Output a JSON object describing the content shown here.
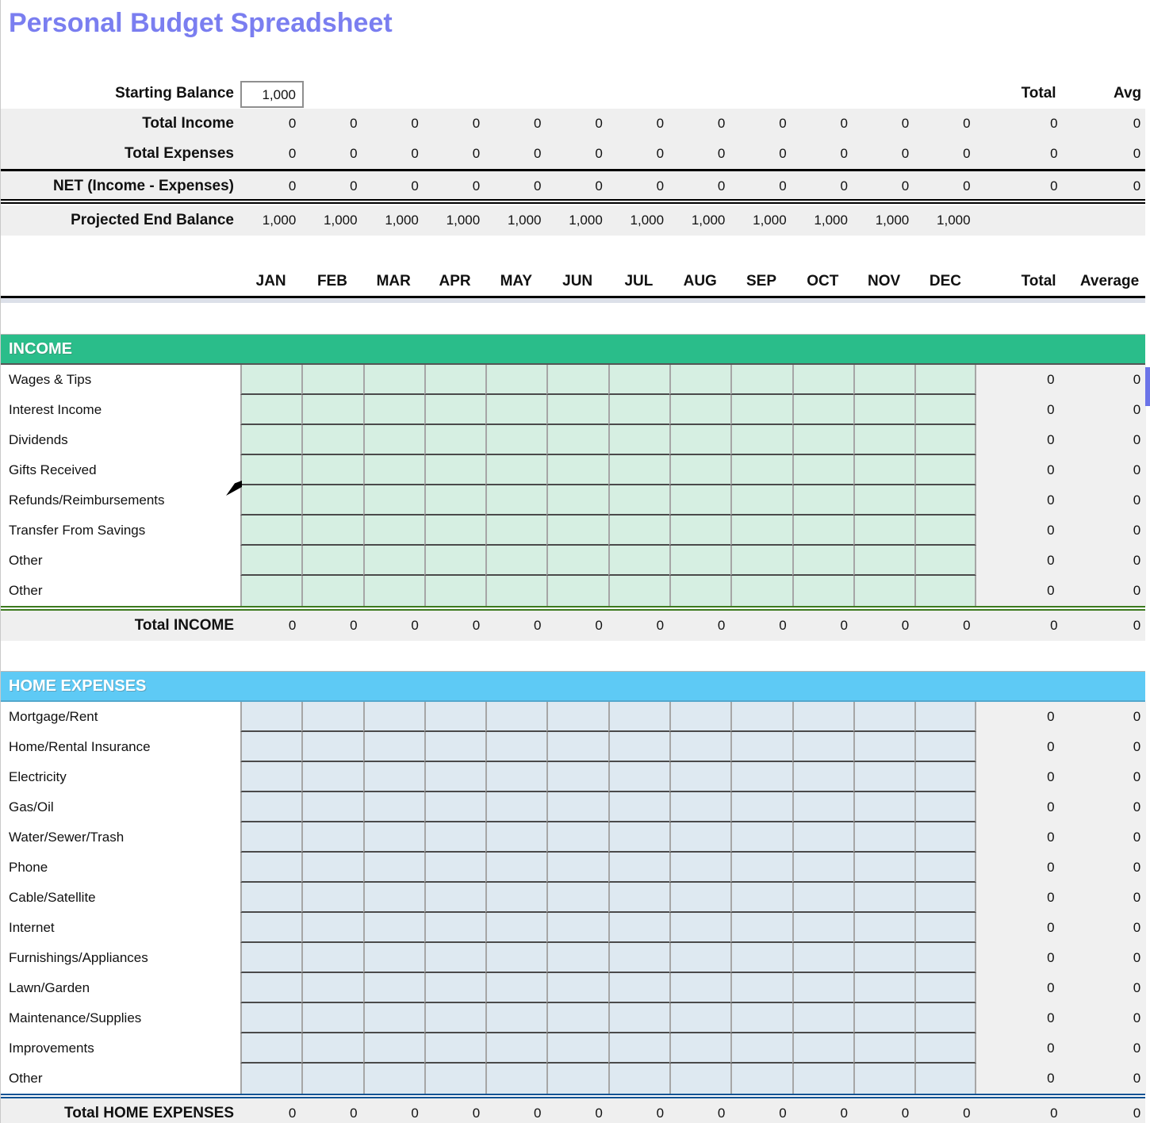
{
  "title": "Personal Budget Spreadsheet",
  "colors": {
    "title": "#7a7ef0",
    "summary_bg": "#efefef",
    "selection": "#6b74e8"
  },
  "months": [
    "JAN",
    "FEB",
    "MAR",
    "APR",
    "MAY",
    "JUN",
    "JUL",
    "AUG",
    "SEP",
    "OCT",
    "NOV",
    "DEC"
  ],
  "summary": {
    "starting_balance_label": "Starting Balance",
    "starting_balance_value": "1,000",
    "total_header": "Total",
    "avg_header": "Avg",
    "rows": [
      {
        "label": "Total Income",
        "values": [
          "0",
          "0",
          "0",
          "0",
          "0",
          "0",
          "0",
          "0",
          "0",
          "0",
          "0",
          "0"
        ],
        "total": "0",
        "avg": "0"
      },
      {
        "label": "Total Expenses",
        "values": [
          "0",
          "0",
          "0",
          "0",
          "0",
          "0",
          "0",
          "0",
          "0",
          "0",
          "0",
          "0"
        ],
        "total": "0",
        "avg": "0"
      },
      {
        "label": "NET (Income - Expenses)",
        "values": [
          "0",
          "0",
          "0",
          "0",
          "0",
          "0",
          "0",
          "0",
          "0",
          "0",
          "0",
          "0"
        ],
        "total": "0",
        "avg": "0"
      },
      {
        "label": "Projected End Balance",
        "values": [
          "1,000",
          "1,000",
          "1,000",
          "1,000",
          "1,000",
          "1,000",
          "1,000",
          "1,000",
          "1,000",
          "1,000",
          "1,000",
          "1,000"
        ],
        "total": "",
        "avg": ""
      }
    ]
  },
  "table_header": {
    "total_label": "Total",
    "average_label": "Average"
  },
  "sections": [
    {
      "name": "INCOME",
      "colors": {
        "header": "#2abd8a",
        "header_line": "#555555",
        "cell": "#d6efe2",
        "rule": "#3c7a1e"
      },
      "rows": [
        {
          "label": "Wages & Tips",
          "total": "0",
          "avg": "0"
        },
        {
          "label": "Interest Income",
          "total": "0",
          "avg": "0"
        },
        {
          "label": "Dividends",
          "total": "0",
          "avg": "0"
        },
        {
          "label": "Gifts Received",
          "total": "0",
          "avg": "0"
        },
        {
          "label": "Refunds/Reimbursements",
          "total": "0",
          "avg": "0"
        },
        {
          "label": "Transfer From Savings",
          "total": "0",
          "avg": "0"
        },
        {
          "label": "Other",
          "total": "0",
          "avg": "0"
        },
        {
          "label": "Other",
          "total": "0",
          "avg": "0"
        }
      ],
      "total_row": {
        "label": "Total INCOME",
        "values": [
          "0",
          "0",
          "0",
          "0",
          "0",
          "0",
          "0",
          "0",
          "0",
          "0",
          "0",
          "0"
        ],
        "total": "0",
        "avg": "0"
      }
    },
    {
      "name": "HOME EXPENSES",
      "colors": {
        "header": "#5ecaf5",
        "header_line": "#53a8cd",
        "cell": "#dee9f1",
        "rule": "#0b5394"
      },
      "rows": [
        {
          "label": "Mortgage/Rent",
          "total": "0",
          "avg": "0"
        },
        {
          "label": "Home/Rental Insurance",
          "total": "0",
          "avg": "0"
        },
        {
          "label": "Electricity",
          "total": "0",
          "avg": "0"
        },
        {
          "label": "Gas/Oil",
          "total": "0",
          "avg": "0"
        },
        {
          "label": "Water/Sewer/Trash",
          "total": "0",
          "avg": "0"
        },
        {
          "label": "Phone",
          "total": "0",
          "avg": "0"
        },
        {
          "label": "Cable/Satellite",
          "total": "0",
          "avg": "0"
        },
        {
          "label": "Internet",
          "total": "0",
          "avg": "0"
        },
        {
          "label": "Furnishings/Appliances",
          "total": "0",
          "avg": "0"
        },
        {
          "label": "Lawn/Garden",
          "total": "0",
          "avg": "0"
        },
        {
          "label": "Maintenance/Supplies",
          "total": "0",
          "avg": "0"
        },
        {
          "label": "Improvements",
          "total": "0",
          "avg": "0"
        },
        {
          "label": "Other",
          "total": "0",
          "avg": "0"
        }
      ],
      "total_row": {
        "label": "Total HOME EXPENSES",
        "values": [
          "0",
          "0",
          "0",
          "0",
          "0",
          "0",
          "0",
          "0",
          "0",
          "0",
          "0",
          "0"
        ],
        "total": "0",
        "avg": "0"
      }
    }
  ]
}
